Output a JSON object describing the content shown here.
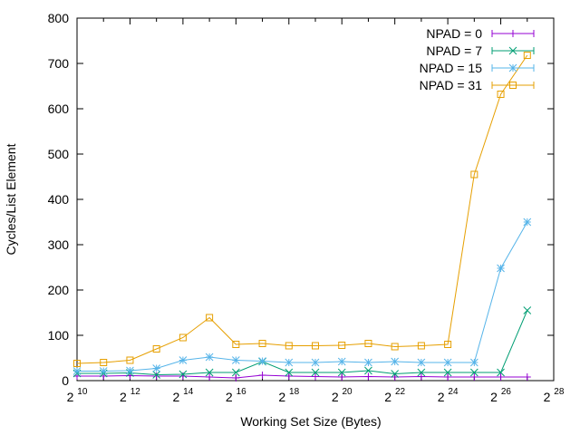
{
  "chart_data": {
    "type": "line",
    "title": "",
    "xlabel": "Working Set Size (Bytes)",
    "ylabel": "Cycles/List Element",
    "x_scale": "log2",
    "x_base_label": "2",
    "x_exponents": [
      10,
      11,
      12,
      13,
      14,
      15,
      16,
      17,
      18,
      19,
      20,
      21,
      22,
      23,
      24,
      25,
      26,
      27
    ],
    "xlim_exponent": [
      10,
      28
    ],
    "x_tick_exponents": [
      10,
      12,
      14,
      16,
      18,
      20,
      22,
      24,
      26,
      28
    ],
    "ylim": [
      0,
      800
    ],
    "y_ticks": [
      0,
      100,
      200,
      300,
      400,
      500,
      600,
      700,
      800
    ],
    "grid": false,
    "legend_position": "top-right",
    "series": [
      {
        "name": "NPAD = 0",
        "color": "#9400d3",
        "marker": "plus",
        "values": [
          10,
          10,
          11,
          10,
          10,
          8,
          6,
          12,
          10,
          9,
          8,
          9,
          8,
          9,
          8,
          8,
          8,
          8
        ]
      },
      {
        "name": "NPAD = 7",
        "color": "#009e73",
        "marker": "x",
        "values": [
          16,
          16,
          17,
          13,
          14,
          18,
          18,
          42,
          18,
          18,
          18,
          22,
          15,
          18,
          18,
          18,
          18,
          155
        ]
      },
      {
        "name": "NPAD = 15",
        "color": "#56b4e9",
        "marker": "star",
        "values": [
          21,
          21,
          22,
          27,
          45,
          52,
          45,
          43,
          40,
          40,
          42,
          40,
          42,
          40,
          40,
          40,
          248,
          350
        ]
      },
      {
        "name": "NPAD = 31",
        "color": "#e69f00",
        "marker": "square",
        "values": [
          38,
          40,
          45,
          70,
          95,
          139,
          80,
          82,
          77,
          77,
          78,
          82,
          75,
          77,
          80,
          455,
          632,
          718
        ]
      }
    ]
  }
}
